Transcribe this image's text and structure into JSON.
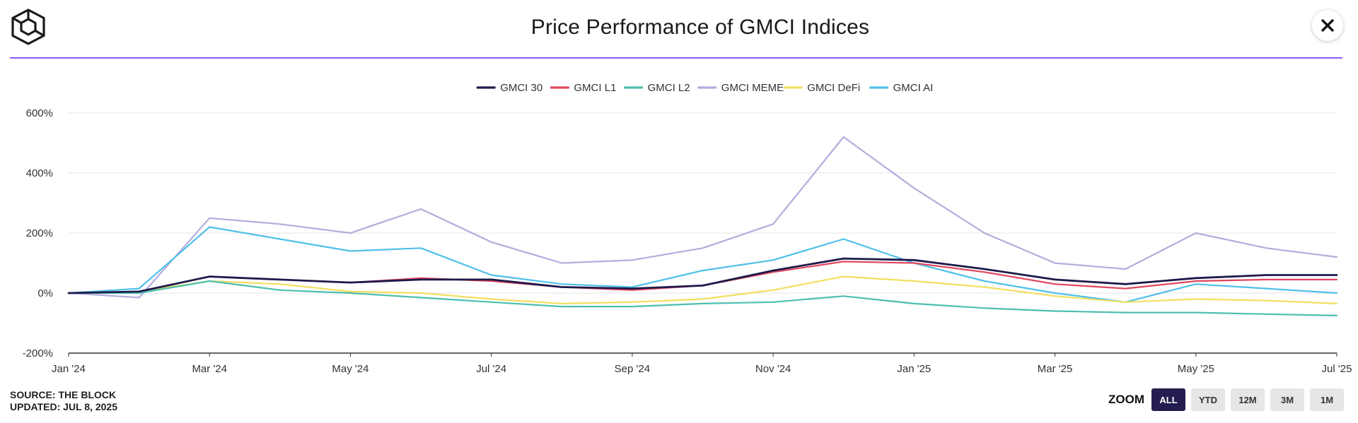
{
  "header": {
    "title": "Price Performance of GMCI Indices"
  },
  "source": {
    "line1": "SOURCE: THE BLOCK",
    "line2": "UPDATED: JUL 8, 2025"
  },
  "zoom": {
    "label": "ZOOM",
    "buttons": [
      "ALL",
      "YTD",
      "12M",
      "3M",
      "1M"
    ],
    "active": "ALL"
  },
  "chart_data": {
    "type": "line",
    "title": "Price Performance of GMCI Indices",
    "xlabel": "",
    "ylabel": "",
    "ylim": [
      -200,
      600
    ],
    "y_ticks": [
      -200,
      0,
      200,
      400,
      600
    ],
    "y_tick_labels": [
      "-200%",
      "0%",
      "200%",
      "400%",
      "600%"
    ],
    "x_tick_labels": [
      "Jan '24",
      "Mar '24",
      "May '24",
      "Jul '24",
      "Sep '24",
      "Nov '24",
      "Jan '25",
      "Mar '25",
      "May '25",
      "Jul '25"
    ],
    "grid": true,
    "legend_position": "top-center",
    "x": [
      "Jan '24",
      "Feb '24",
      "Mar '24",
      "Apr '24",
      "May '24",
      "Jun '24",
      "Jul '24",
      "Aug '24",
      "Sep '24",
      "Oct '24",
      "Nov '24",
      "Dec '24",
      "Jan '25",
      "Feb '25",
      "Mar '25",
      "Apr '25",
      "May '25",
      "Jun '25",
      "Jul '25"
    ],
    "series": [
      {
        "name": "GMCI 30",
        "color": "#1d1a4a",
        "values": [
          0,
          5,
          55,
          45,
          35,
          45,
          45,
          20,
          15,
          25,
          75,
          115,
          110,
          80,
          45,
          30,
          50,
          60,
          60
        ]
      },
      {
        "name": "GMCI L1",
        "color": "#e0465f",
        "values": [
          0,
          5,
          55,
          45,
          35,
          50,
          40,
          20,
          10,
          25,
          70,
          105,
          100,
          70,
          30,
          15,
          40,
          45,
          45
        ]
      },
      {
        "name": "GMCI L2",
        "color": "#4cbfae",
        "values": [
          0,
          0,
          40,
          10,
          0,
          -15,
          -30,
          -45,
          -45,
          -35,
          -30,
          -10,
          -35,
          -50,
          -60,
          -65,
          -65,
          -70,
          -75
        ]
      },
      {
        "name": "GMCI MEME",
        "color": "#b4acdd",
        "values": [
          0,
          -15,
          250,
          230,
          200,
          280,
          170,
          100,
          110,
          150,
          230,
          520,
          350,
          200,
          100,
          80,
          200,
          150,
          120
        ]
      },
      {
        "name": "GMCI DeFi",
        "color": "#f2df60",
        "values": [
          0,
          5,
          40,
          30,
          5,
          0,
          -20,
          -35,
          -30,
          -20,
          10,
          55,
          40,
          20,
          -10,
          -30,
          -20,
          -25,
          -35
        ]
      },
      {
        "name": "GMCI AI",
        "color": "#4fc0e8",
        "values": [
          0,
          15,
          220,
          180,
          140,
          150,
          60,
          30,
          20,
          75,
          110,
          180,
          100,
          40,
          0,
          -30,
          30,
          15,
          0
        ]
      }
    ]
  }
}
